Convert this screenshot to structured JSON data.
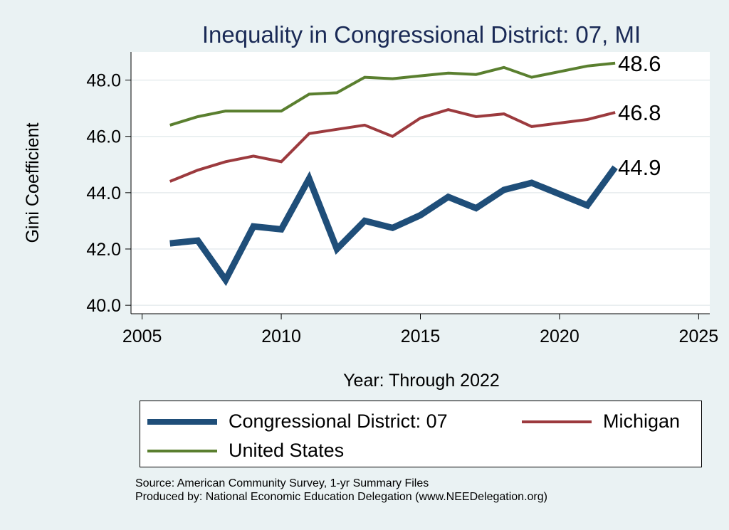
{
  "chart_data": {
    "type": "line",
    "title": "Inequality in Congressional District:  07, MI",
    "xlabel": "Year: Through 2022",
    "ylabel": "Gini Coefficient",
    "xlim": [
      2004.6,
      2025.4
    ],
    "ylim": [
      39.7,
      49.0
    ],
    "xticks": [
      2005,
      2010,
      2015,
      2020,
      2025
    ],
    "xtick_labels": [
      "2005",
      "2010",
      "2015",
      "2020",
      "2025"
    ],
    "yticks": [
      40,
      42,
      44,
      46,
      48
    ],
    "ytick_labels": [
      "40.0",
      "42.0",
      "44.0",
      "46.0",
      "48.0"
    ],
    "grid": true,
    "legend_position": "bottom",
    "series": [
      {
        "name": "Congressional District:  07",
        "color": "#1f4e79",
        "x": [
          2006,
          2007,
          2008,
          2009,
          2010,
          2011,
          2012,
          2013,
          2014,
          2015,
          2016,
          2017,
          2018,
          2019,
          2021,
          2022
        ],
        "values": [
          42.2,
          42.3,
          40.9,
          42.8,
          42.7,
          44.5,
          42.0,
          43.0,
          42.75,
          43.2,
          43.85,
          43.45,
          44.1,
          44.35,
          43.55,
          44.9
        ],
        "end_label": "44.9"
      },
      {
        "name": "Michigan",
        "color": "#9c3a3e",
        "x": [
          2006,
          2007,
          2008,
          2009,
          2010,
          2011,
          2012,
          2013,
          2014,
          2015,
          2016,
          2017,
          2018,
          2019,
          2021,
          2022
        ],
        "values": [
          44.4,
          44.8,
          45.1,
          45.3,
          45.1,
          46.1,
          46.25,
          46.4,
          46.0,
          46.65,
          46.95,
          46.7,
          46.8,
          46.35,
          46.6,
          46.85
        ],
        "end_label": "46.8"
      },
      {
        "name": "United States",
        "color": "#5a7f2f",
        "x": [
          2006,
          2007,
          2008,
          2009,
          2010,
          2011,
          2012,
          2013,
          2014,
          2015,
          2016,
          2017,
          2018,
          2019,
          2021,
          2022
        ],
        "values": [
          46.4,
          46.7,
          46.9,
          46.9,
          46.9,
          47.5,
          47.55,
          48.1,
          48.05,
          48.15,
          48.25,
          48.2,
          48.45,
          48.1,
          48.5,
          48.6
        ],
        "end_label": "48.6"
      }
    ]
  },
  "legend": {
    "items": [
      {
        "label": "Congressional District:  07",
        "color": "#1f4e79"
      },
      {
        "label": "Michigan",
        "color": "#9c3a3e"
      },
      {
        "label": "United States",
        "color": "#5a7f2f"
      }
    ]
  },
  "footer": {
    "source": "Source: American Community Survey, 1-yr Summary Files",
    "produced_by": "Produced by: National Economic Education Delegation (www.NEEDelegation.org)"
  }
}
